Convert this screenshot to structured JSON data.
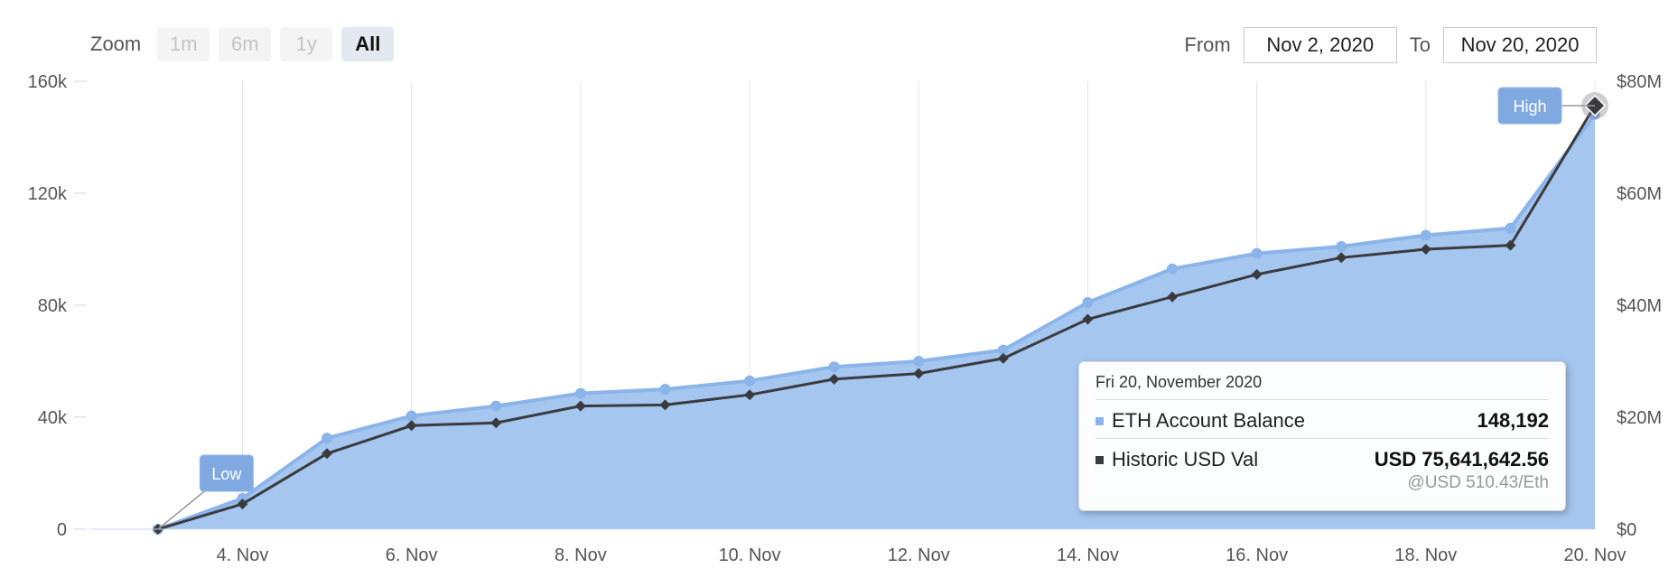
{
  "zoom": {
    "label": "Zoom",
    "buttons": [
      "1m",
      "6m",
      "1y",
      "All"
    ],
    "active": "All"
  },
  "range": {
    "from_label": "From",
    "from_value": "Nov 2, 2020",
    "to_label": "To",
    "to_value": "Nov 20, 2020"
  },
  "colors": {
    "area_fill": "#a5c6ee",
    "balance_line": "#8ab4ea",
    "usd_line": "#3b3b3f",
    "grid": "#e3e3e3"
  },
  "chart_data": {
    "type": "area",
    "x": [
      3,
      4,
      5,
      6,
      7,
      8,
      9,
      10,
      11,
      12,
      13,
      14,
      15,
      16,
      17,
      18,
      19,
      20
    ],
    "x_unit": "Nov 2020 day",
    "xlim": [
      2.2,
      20
    ],
    "x_ticks": [
      4,
      6,
      8,
      10,
      12,
      14,
      16,
      18,
      20
    ],
    "x_tick_labels": [
      "4. Nov",
      "6. Nov",
      "8. Nov",
      "10. Nov",
      "12. Nov",
      "14. Nov",
      "16. Nov",
      "18. Nov",
      "20. Nov"
    ],
    "series": [
      {
        "name": "ETH Account Balance",
        "axis": "left",
        "values": [
          0,
          11000,
          32500,
          40500,
          44000,
          48500,
          50000,
          53000,
          58000,
          60000,
          64000,
          81000,
          93000,
          98500,
          101000,
          105000,
          107500,
          148192
        ]
      },
      {
        "name": "Historic USD Val",
        "axis": "right",
        "values": [
          0,
          4500000,
          13500000,
          18500000,
          19000000,
          22000000,
          22200000,
          24000000,
          26800000,
          27800000,
          30500000,
          37500000,
          41500000,
          45500000,
          48500000,
          50000000,
          50700000,
          75641642.56
        ]
      }
    ],
    "y_left": {
      "lim": [
        0,
        160000
      ],
      "ticks": [
        0,
        40000,
        80000,
        120000,
        160000
      ],
      "tick_labels": [
        "0",
        "40k",
        "80k",
        "120k",
        "160k"
      ]
    },
    "y_right": {
      "lim": [
        0,
        80000000
      ],
      "ticks": [
        0,
        20000000,
        40000000,
        60000000,
        80000000
      ],
      "tick_labels": [
        "$0",
        "$20M",
        "$40M",
        "$60M",
        "$80M"
      ]
    },
    "grid": "vertical",
    "flags": [
      {
        "label": "Low",
        "x": 3,
        "series": 0
      },
      {
        "label": "High",
        "x": 20,
        "series": 1
      }
    ]
  },
  "tooltip": {
    "date": "Fri 20, November 2020",
    "rows": [
      {
        "name": "ETH Account Balance",
        "value": "148,192",
        "sub": ""
      },
      {
        "name": "Historic USD Val",
        "value": "USD 75,641,642.56",
        "sub": "@USD 510.43/Eth"
      }
    ]
  }
}
